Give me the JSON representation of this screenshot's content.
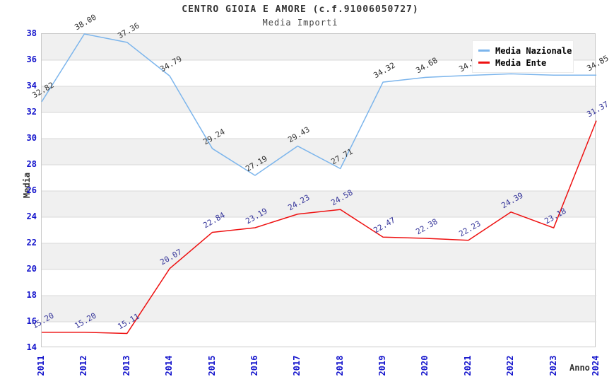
{
  "header": {
    "title": "CENTRO GIOIA E AMORE (c.f.91006050727)",
    "subtitle": "Media Importi"
  },
  "axes": {
    "y_label": "Media",
    "x_label": "Anno",
    "y_ticks": [
      38,
      36,
      34,
      32,
      30,
      28,
      26,
      24,
      22,
      20,
      18,
      16,
      14
    ],
    "x_ticks": [
      "2011",
      "2012",
      "2013",
      "2014",
      "2015",
      "2016",
      "2017",
      "2018",
      "2019",
      "2020",
      "2021",
      "2022",
      "2023",
      "2024"
    ]
  },
  "legend": {
    "items": [
      {
        "label": "Media Nazionale",
        "color": "#7cb5ec"
      },
      {
        "label": "Media Ente",
        "color": "#ee1111"
      }
    ]
  },
  "colors": {
    "tick_label": "#1414cc",
    "grid_line": "#d9d9d9",
    "band_gray": "#f0f0f0",
    "band_white": "#ffffff",
    "plot_border": "#c9c9c9",
    "title_text": "#333333"
  },
  "chart_data": {
    "type": "line",
    "title": "CENTRO GIOIA E AMORE (c.f.91006050727)",
    "subtitle": "Media Importi",
    "xlabel": "Anno",
    "ylabel": "Media",
    "x": [
      2011,
      2012,
      2013,
      2014,
      2015,
      2016,
      2017,
      2018,
      2019,
      2020,
      2021,
      2022,
      2023,
      2024
    ],
    "ylim": [
      14,
      38
    ],
    "ytick_step": 2,
    "grid": "horizontal, alternating gray/white bands",
    "legend_position": "top-right inside plot",
    "note": "2022 and 2023 labels of Media Nazionale are hidden behind the legend box; values estimated from line position",
    "series": [
      {
        "name": "Media Nazionale",
        "color": "#7cb5ec",
        "label_color": "#333333",
        "values": [
          32.82,
          38.0,
          37.36,
          34.79,
          29.24,
          27.19,
          29.43,
          27.71,
          34.32,
          34.68,
          34.83,
          34.95,
          34.85,
          34.85
        ]
      },
      {
        "name": "Media Ente",
        "color": "#ee1111",
        "label_color": "#333399",
        "values": [
          15.2,
          15.2,
          15.11,
          20.07,
          22.84,
          23.19,
          24.23,
          24.58,
          22.47,
          22.38,
          22.23,
          24.39,
          23.18,
          31.37
        ]
      }
    ]
  }
}
